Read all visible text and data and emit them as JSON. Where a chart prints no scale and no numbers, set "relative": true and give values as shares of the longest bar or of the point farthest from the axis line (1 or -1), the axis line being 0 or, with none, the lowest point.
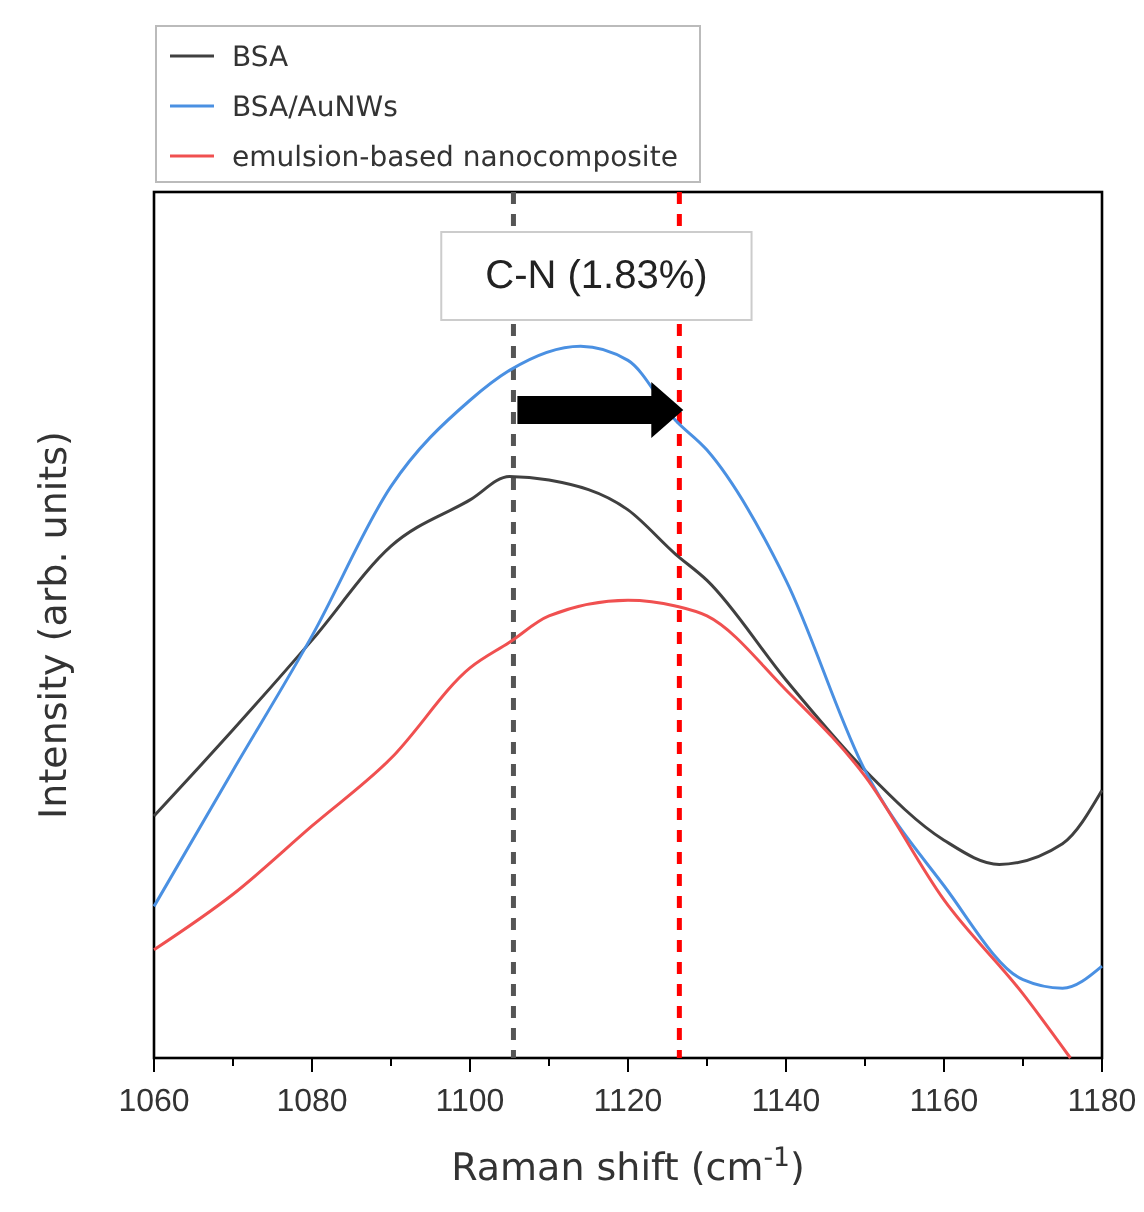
{
  "chart_data": {
    "type": "line",
    "relative": true,
    "xlabel": "Raman shift (cm$^{-1}$)",
    "ylabel": "Intensity (arb. units)",
    "xlim": [
      1060,
      1180
    ],
    "xticks": [
      1060,
      {
        "value": 1070,
        "label": null
      },
      1080,
      {
        "value": 1090,
        "label": null
      },
      1100,
      {
        "value": 1110,
        "label": null
      },
      1120,
      {
        "value": 1130,
        "label": null
      },
      1140,
      {
        "value": 1150,
        "label": null
      },
      1160,
      {
        "value": 1170,
        "label": null
      },
      1180
    ],
    "tick_labels": "x",
    "legend": "top left",
    "line_style": "solid",
    "marker": "none",
    "grid": false,
    "annotations": [
      "C-N (1.83%)"
    ],
    "ref_lines": [
      {
        "axis": "x",
        "value": 1105.5,
        "color": "#555555",
        "line_style": "dashed"
      },
      {
        "axis": "x",
        "value": 1126.5,
        "color": "#ff0000",
        "line_style": "dashed"
      }
    ],
    "series": [
      {
        "name": "BSA",
        "color": "#404040",
        "x": [
          1060,
          1070,
          1080,
          1090,
          1100,
          1105,
          1110,
          1120,
          1126,
          1130,
          1140,
          1150,
          1160,
          1167,
          1175,
          1180
        ],
        "values": [
          0.34,
          0.461,
          0.587,
          0.719,
          0.784,
          0.817,
          0.812,
          0.77,
          0.708,
          0.671,
          0.531,
          0.404,
          0.306,
          0.272,
          0.301,
          0.376
        ]
      },
      {
        "name": "BSA/AuNWs",
        "color": "#4a90e2",
        "x": [
          1060,
          1070,
          1080,
          1090,
          1100,
          1105,
          1114,
          1120,
          1126,
          1130,
          1140,
          1150,
          1160,
          1170,
          1175,
          1180
        ],
        "values": [
          0.213,
          0.404,
          0.593,
          0.803,
          0.924,
          0.966,
          1,
          0.98,
          0.896,
          0.854,
          0.671,
          0.404,
          0.242,
          0.11,
          0.098,
          0.129
        ]
      },
      {
        "name": "emulsion-based nanocomposite",
        "color": "#f05050",
        "x": [
          1060,
          1070,
          1080,
          1090,
          1100,
          1105,
          1110,
          1120,
          1126,
          1130,
          1140,
          1150,
          1160,
          1170,
          1176
        ],
        "values": [
          0.152,
          0.23,
          0.326,
          0.421,
          0.548,
          0.584,
          0.621,
          0.643,
          0.635,
          0.621,
          0.517,
          0.396,
          0.222,
          0.09,
          0
        ]
      }
    ]
  }
}
